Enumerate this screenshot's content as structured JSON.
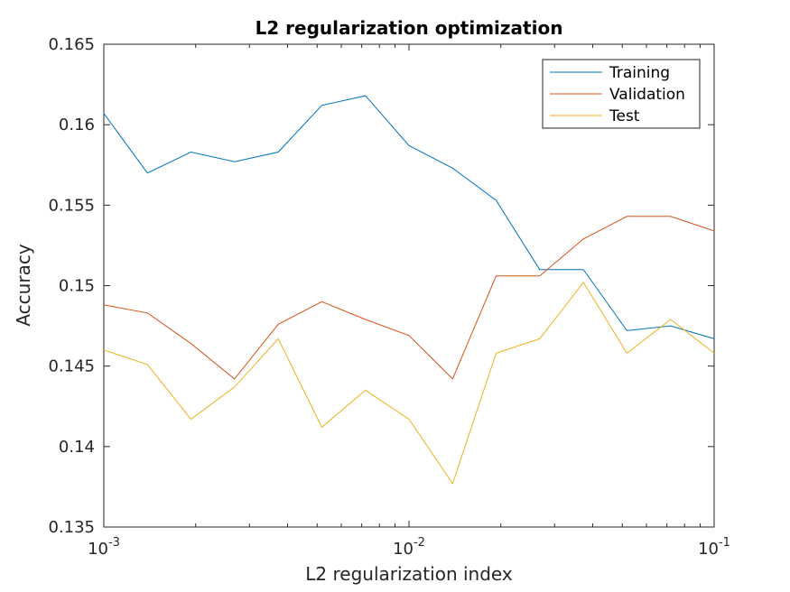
{
  "chart_data": {
    "type": "line",
    "title": "L2 regularization optimization",
    "xlabel": "L2 regularization index",
    "ylabel": "Accuracy",
    "xscale": "log",
    "xlim": [
      0.001,
      0.1
    ],
    "ylim": [
      0.135,
      0.165
    ],
    "x_ticks": [
      {
        "base": "10",
        "exp": "-3",
        "value": 0.001
      },
      {
        "base": "10",
        "exp": "-2",
        "value": 0.01
      },
      {
        "base": "10",
        "exp": "-1",
        "value": 0.1
      }
    ],
    "y_ticks": [
      "0.135",
      "0.14",
      "0.145",
      "0.15",
      "0.155",
      "0.16",
      "0.165"
    ],
    "legend_position": "top-right",
    "x": [
      0.001,
      0.00139,
      0.00193,
      0.00268,
      0.00373,
      0.00518,
      0.0072,
      0.01,
      0.0139,
      0.0193,
      0.0268,
      0.0373,
      0.0518,
      0.072,
      0.1
    ],
    "series": [
      {
        "name": "Training",
        "color": "#0072BD",
        "values": [
          0.1607,
          0.157,
          0.1583,
          0.1577,
          0.1583,
          0.1612,
          0.1618,
          0.1587,
          0.1573,
          0.1553,
          0.151,
          0.151,
          0.1472,
          0.1475,
          0.1467
        ]
      },
      {
        "name": "Validation",
        "color": "#D95319",
        "values": [
          0.1488,
          0.1483,
          0.1464,
          0.1442,
          0.1476,
          0.149,
          0.1479,
          0.1469,
          0.1442,
          0.1506,
          0.1506,
          0.1529,
          0.1543,
          0.1543,
          0.1534
        ]
      },
      {
        "name": "Test",
        "color": "#EDB120",
        "values": [
          0.146,
          0.1451,
          0.1417,
          0.1437,
          0.1467,
          0.1412,
          0.1435,
          0.1417,
          0.1377,
          0.1458,
          0.1467,
          0.1502,
          0.1458,
          0.1479,
          0.1458
        ]
      }
    ]
  }
}
